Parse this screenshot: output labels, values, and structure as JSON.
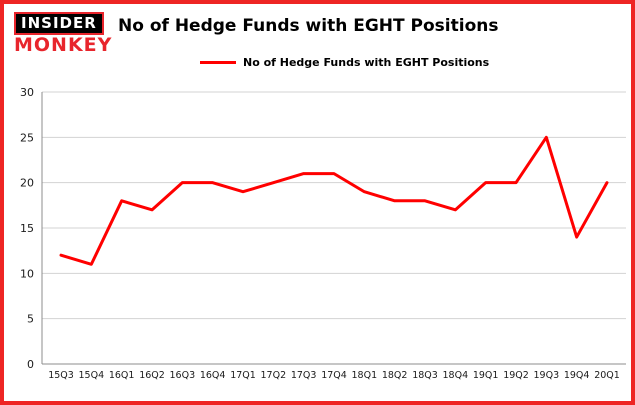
{
  "logo": {
    "line1": "INSIDER",
    "line2": "MONKEY"
  },
  "colors": {
    "line": "#ff0000",
    "border": "#ee2524",
    "grid": "#d3d3d3",
    "axis": "#8c8c8c",
    "logo_black": "#000000",
    "logo_red": "#e8252c",
    "tick_text": "#1a1a1a"
  },
  "chart_data": {
    "type": "line",
    "title": "No of Hedge Funds with EGHT Positions",
    "legend": "No of Hedge Funds with EGHT Positions",
    "categories": [
      "15Q3",
      "15Q4",
      "16Q1",
      "16Q2",
      "16Q3",
      "16Q4",
      "17Q1",
      "17Q2",
      "17Q3",
      "17Q4",
      "18Q1",
      "18Q2",
      "18Q3",
      "18Q4",
      "19Q1",
      "19Q2",
      "19Q3",
      "19Q4",
      "20Q1"
    ],
    "values": [
      12,
      11,
      18,
      17,
      20,
      20,
      19,
      20,
      21,
      21,
      19,
      18,
      18,
      17,
      20,
      20,
      25,
      14,
      20
    ],
    "xlabel": "",
    "ylabel": "",
    "ylim": [
      0,
      30
    ],
    "yticks": [
      0,
      5,
      10,
      15,
      20,
      25,
      30
    ],
    "grid": true,
    "legend_position": "top"
  }
}
